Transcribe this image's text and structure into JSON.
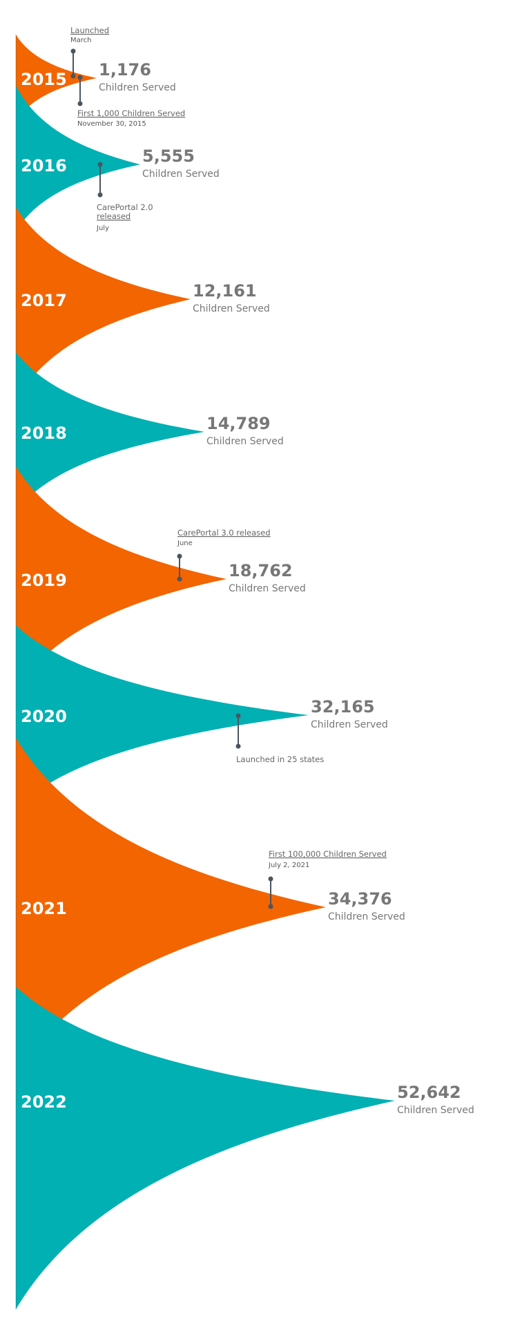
{
  "chart_data": {
    "type": "area",
    "title": "",
    "unit_label": "Children Served",
    "colors": {
      "orange": "#f26500",
      "teal": "#00b0b3",
      "marker": "#4a5560",
      "value_text": "#777777"
    },
    "series": [
      {
        "year": "2015",
        "value": 1176,
        "value_label": "1,176",
        "color": "orange"
      },
      {
        "year": "2016",
        "value": 5555,
        "value_label": "5,555",
        "color": "teal"
      },
      {
        "year": "2017",
        "value": 12161,
        "value_label": "12,161",
        "color": "orange"
      },
      {
        "year": "2018",
        "value": 14789,
        "value_label": "14,789",
        "color": "teal"
      },
      {
        "year": "2019",
        "value": 18762,
        "value_label": "18,762",
        "color": "orange"
      },
      {
        "year": "2020",
        "value": 32165,
        "value_label": "32,165",
        "color": "teal"
      },
      {
        "year": "2021",
        "value": 34376,
        "value_label": "34,376",
        "color": "orange"
      },
      {
        "year": "2022",
        "value": 52642,
        "value_label": "52,642",
        "color": "teal"
      }
    ],
    "annotations": [
      {
        "year": "2015",
        "title": "Launched",
        "subtitle": "March",
        "underline": true
      },
      {
        "year": "2015",
        "title": "First 1,000 Children Served",
        "subtitle": "November 30, 2015",
        "underline": true
      },
      {
        "year": "2016",
        "title": "CarePortal 2.0",
        "title2": "released",
        "subtitle": "July",
        "underline": true
      },
      {
        "year": "2019",
        "title": "CarePortal 3.0 released",
        "subtitle": "June",
        "underline": true
      },
      {
        "year": "2020",
        "title": "Launched in 25 states",
        "subtitle": "",
        "underline": false
      },
      {
        "year": "2021",
        "title": "First 100,000 Children Served",
        "subtitle": "July 2, 2021",
        "underline": true
      }
    ]
  }
}
